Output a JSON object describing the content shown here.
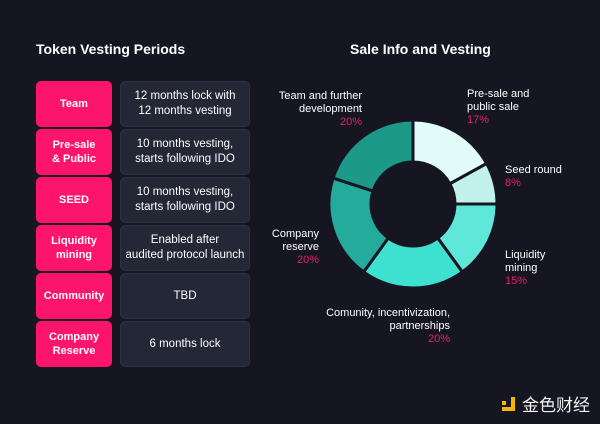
{
  "left_title": "Token Vesting Periods",
  "right_title": "Sale Info and Vesting",
  "rows": [
    {
      "label": "Team",
      "value": "12 months lock with\n12 months vesting"
    },
    {
      "label": "Pre-sale\n& Public",
      "value": "10 months vesting,\nstarts following IDO"
    },
    {
      "label": "SEED",
      "value": "10 months vesting,\nstarts following IDO"
    },
    {
      "label": "Liquidity\nmining",
      "value": "Enabled after\naudited protocol launch"
    },
    {
      "label": "Community",
      "value": "TBD"
    },
    {
      "label": "Company\nReserve",
      "value": "6 months lock"
    }
  ],
  "chart_data": {
    "type": "pie",
    "title": "Sale Info and Vesting",
    "donut": true,
    "slices": [
      {
        "label": "Pre-sale and\npublic sale",
        "pct": "17%",
        "value": 17,
        "color": "#e2fcfa"
      },
      {
        "label": "Seed round",
        "pct": "8%",
        "value": 8,
        "color": "#c2f1eb"
      },
      {
        "label": "Liquidity\nmining",
        "pct": "15%",
        "value": 15,
        "color": "#5fe8d9"
      },
      {
        "label": "Comunity, incentivization,\npartnerships",
        "pct": "20%",
        "value": 20,
        "color": "#3ee0cf"
      },
      {
        "label": "Company\nreserve",
        "pct": "20%",
        "value": 20,
        "color": "#24ab9b"
      },
      {
        "label": "Team and further\ndevelopment",
        "pct": "20%",
        "value": 20,
        "color": "#1c9989"
      }
    ]
  },
  "watermark": {
    "text": "金色财经",
    "accent": "#f5b800"
  }
}
